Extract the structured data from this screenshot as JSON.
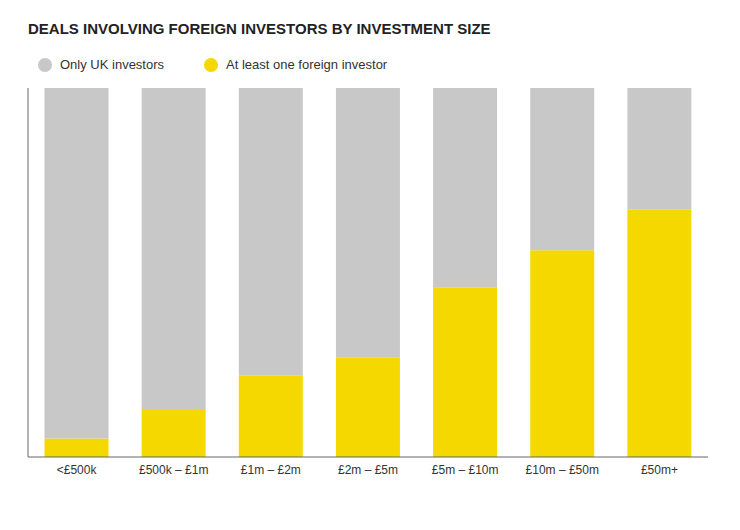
{
  "chart_data": {
    "type": "bar",
    "title": "DEALS INVOLVING FOREIGN INVESTORS BY INVESTMENT SIZE",
    "categories": [
      "<£500k",
      "£500k – £1m",
      "£1m – £2m",
      "£2m – £5m",
      "£5m – £10m",
      "£10m – £50m",
      "£50m+"
    ],
    "series": [
      {
        "name": "At least one foreign investor",
        "color": "#f5d800",
        "values": [
          5,
          13,
          22,
          27,
          46,
          56,
          67
        ]
      },
      {
        "name": "Only UK investors",
        "color": "#c8c8c8",
        "values": [
          95,
          87,
          78,
          73,
          54,
          44,
          33
        ]
      }
    ],
    "stacked": true,
    "ylim": [
      0,
      100
    ],
    "tick_labels": "x",
    "grid": false,
    "legend": "top"
  }
}
